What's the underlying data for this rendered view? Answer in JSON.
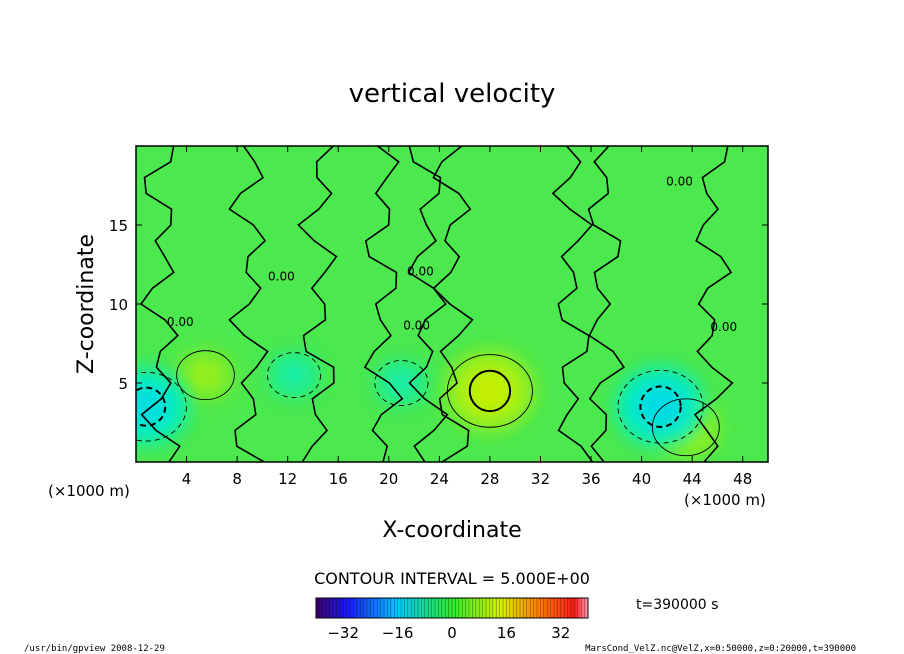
{
  "chart_data": {
    "type": "heatmap",
    "title": "vertical velocity",
    "xlabel": "X-coordinate",
    "ylabel": "Z-coordinate",
    "x_unit_left": "(×1000 m)",
    "x_unit_right": "(×1000 m)",
    "xlim": [
      0,
      50
    ],
    "ylim": [
      0,
      20
    ],
    "x_ticks": [
      4,
      8,
      12,
      16,
      20,
      24,
      28,
      32,
      36,
      40,
      44,
      48
    ],
    "y_ticks": [
      5,
      10,
      15
    ],
    "contour_interval": "CONTOUR INTERVAL = 5.000E+00",
    "zero_contour_label": "0.00",
    "time_label": "t=390000 s",
    "colorbar": {
      "ticks": [
        -32,
        -16,
        0,
        16,
        32
      ],
      "range": [
        -40,
        40
      ],
      "palette": "rainbow"
    },
    "features": [
      {
        "kind": "updraft",
        "x": 28,
        "z": 4.5,
        "peak": 12
      },
      {
        "kind": "updraft",
        "x": 5.5,
        "z": 5.5,
        "peak": 6
      },
      {
        "kind": "updraft",
        "x": 43.5,
        "z": 2.2,
        "peak": 8
      },
      {
        "kind": "downdraft",
        "x": 0.8,
        "z": 3.5,
        "peak": -11
      },
      {
        "kind": "downdraft",
        "x": 41.5,
        "z": 3.5,
        "peak": -12
      },
      {
        "kind": "downdraft",
        "x": 12.5,
        "z": 5.5,
        "peak": -5
      },
      {
        "kind": "downdraft",
        "x": 21,
        "z": 5,
        "peak": -5
      }
    ]
  },
  "footer": {
    "left": "/usr/bin/gpview   2008-12-29",
    "right": "MarsCond_VelZ.nc@VelZ,x=0:50000,z=0:20000,t=390000"
  }
}
